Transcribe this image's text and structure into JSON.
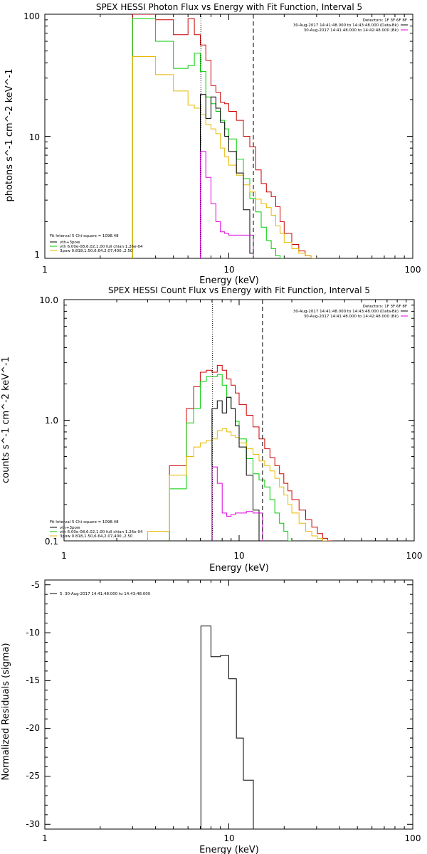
{
  "chart_data": [
    {
      "type": "line",
      "title": "SPEX HESSI Photon Flux vs Energy with Fit Function, Interval 5",
      "xlabel": "Energy (keV)",
      "ylabel": "photons s^-1 cm^-2 keV^-1",
      "xscale": "log",
      "yscale": "log",
      "xlim": [
        1,
        100
      ],
      "ylim": [
        1,
        100
      ],
      "xtick_labels": [
        "1",
        "10",
        "100"
      ],
      "ytick_labels": [
        "1",
        "10",
        "100"
      ],
      "fit_labels": [
        "Fit Interval 5   Chi-square = 1098.48",
        "vth+3pow",
        "vth 6.00e-08,6.02,1.00  full chian 1.26e-04",
        "3pow 0.818,1.50,6.64,2.07,400.,2.50"
      ],
      "detector_info": [
        "Detectors: 1F 3F 6F 8F",
        "30-Aug-2017 14:41:48.000 to 14:43:48.000 (Data-Bk)",
        "30-Aug-2017 14:41:48.000 to 14:42:48.000 (Bk)"
      ],
      "vlines": {
        "dotted": 7.05,
        "dashed": 13.6
      },
      "series": [
        {
          "color": "#cc0000",
          "edges": [
            3,
            4,
            5,
            6,
            6.5,
            7,
            7.5,
            8,
            8.5,
            9,
            9.5,
            10,
            11,
            12,
            13,
            14,
            15,
            16,
            17,
            18,
            19,
            20,
            22,
            24,
            26,
            28,
            30
          ],
          "values": [
            100,
            90,
            68,
            92,
            68,
            56,
            42,
            26,
            23,
            19,
            18.5,
            16,
            13.5,
            10,
            8.2,
            5.3,
            4.1,
            3.5,
            3.2,
            2.65,
            2.0,
            1.6,
            1.3,
            1.15,
            1.05,
            1.0
          ]
        },
        {
          "color": "#00cc00",
          "edges": [
            3,
            4,
            5,
            6,
            6.5,
            7,
            7.5,
            8,
            8.5,
            9,
            9.5,
            10,
            11,
            12,
            13,
            14,
            15,
            16,
            17,
            18,
            19,
            20
          ],
          "values": [
            92,
            60,
            36,
            38,
            48,
            34,
            21,
            18.5,
            16,
            13.5,
            11.5,
            9.5,
            6.5,
            4.5,
            3.1,
            2.4,
            1.8,
            1.4,
            1.2,
            1.05,
            1.0
          ]
        },
        {
          "color": "#e6b800",
          "edges": [
            3,
            4,
            5,
            6,
            6.5,
            7,
            7.5,
            8,
            8.5,
            9,
            9.5,
            10,
            11,
            12,
            13,
            14,
            15,
            16,
            17,
            18,
            19,
            20,
            22,
            24,
            26,
            28,
            30
          ],
          "values": [
            45,
            32,
            23.5,
            18,
            17,
            15,
            12.5,
            11.5,
            10.5,
            8,
            6.8,
            5.8,
            4.8,
            4,
            3.5,
            3.05,
            2.8,
            2.6,
            2.25,
            1.85,
            1.6,
            1.35,
            1.2,
            1.1,
            1.05,
            1.0
          ]
        },
        {
          "color": "#000000",
          "edges": [
            7,
            7.5,
            8,
            8.5,
            9,
            9.5,
            10,
            11,
            12,
            13,
            13.6
          ],
          "values": [
            22,
            14,
            21,
            17,
            13,
            10,
            7.5,
            5,
            2.5,
            1.1
          ]
        },
        {
          "color": "#dd00dd",
          "edges": [
            7,
            7.5,
            8,
            8.5,
            9,
            9.5,
            10,
            11,
            12,
            13,
            13.6
          ],
          "values": [
            7.5,
            4.6,
            2.8,
            2.0,
            1.65,
            1.6,
            1.55,
            1.55,
            1.55,
            1.55
          ]
        }
      ]
    },
    {
      "type": "line",
      "title": "SPEX HESSI Count Flux vs Energy with Fit Function, Interval 5",
      "xlabel": "Energy (keV)",
      "ylabel": "counts s^-1 cm^-2 keV^-1",
      "xscale": "log",
      "yscale": "log",
      "xlim": [
        1,
        100
      ],
      "ylim": [
        0.1,
        10
      ],
      "xtick_labels": [
        "1",
        "10",
        "100"
      ],
      "ytick_labels": [
        "0.1",
        "1.0",
        "10.0"
      ],
      "fit_labels": [
        "Fit Interval 5   Chi-square = 1098.48",
        "vth+3pow",
        "vth 6.00e-08,6.02,1.00  full chian 1.26e-04",
        "3pow 0.818,1.50,6.64,2.07,400.,2.50"
      ],
      "detector_info": [
        "Detectors: 1F 3F 6F 8F",
        "30-Aug-2017 14:41:48.000 to 14:43:48.000 (Data-Bk)",
        "30-Aug-2017 14:41:48.000 to 14:42:48.000 (Bk)"
      ],
      "vlines": {
        "dotted": 7.05,
        "dashed": 13.6
      },
      "series": [
        {
          "color": "#cc0000",
          "edges": [
            4,
            5,
            5.5,
            6,
            6.5,
            7,
            7.5,
            8,
            8.5,
            9,
            9.5,
            10,
            11,
            12,
            13,
            14,
            15,
            16,
            17,
            18,
            19,
            20,
            22,
            24,
            26,
            28,
            30,
            32,
            34
          ],
          "values": [
            0.42,
            1.25,
            1.9,
            2.5,
            2.6,
            2.5,
            2.85,
            2.6,
            2.2,
            1.95,
            1.68,
            1.35,
            1.1,
            0.88,
            0.7,
            0.58,
            0.49,
            0.42,
            0.36,
            0.3,
            0.26,
            0.22,
            0.18,
            0.15,
            0.13,
            0.115,
            0.105,
            0.1
          ]
        },
        {
          "color": "#00cc00",
          "edges": [
            4,
            5,
            5.5,
            6,
            6.5,
            7,
            7.5,
            8,
            8.5,
            9,
            9.5,
            10,
            11,
            12,
            13,
            14,
            15,
            16,
            17,
            18,
            19,
            20
          ],
          "values": [
            0.27,
            0.95,
            1.25,
            2.1,
            2.3,
            2.3,
            2.4,
            1.95,
            1.55,
            1.25,
            0.98,
            0.7,
            0.48,
            0.36,
            0.32,
            0.28,
            0.22,
            0.17,
            0.14,
            0.12,
            0.1
          ]
        },
        {
          "color": "#e6b800",
          "edges": [
            3,
            4,
            5,
            5.5,
            6,
            6.5,
            7,
            7.5,
            8,
            8.5,
            9,
            9.5,
            10,
            11,
            12,
            13,
            14,
            15,
            16,
            17,
            18,
            19,
            20,
            22,
            24,
            26,
            28,
            30,
            32
          ],
          "values": [
            0.12,
            0.35,
            0.5,
            0.6,
            0.65,
            0.68,
            0.7,
            0.82,
            0.85,
            0.8,
            0.75,
            0.72,
            0.65,
            0.58,
            0.52,
            0.46,
            0.42,
            0.38,
            0.33,
            0.28,
            0.24,
            0.2,
            0.17,
            0.14,
            0.12,
            0.11,
            0.105,
            0.1
          ]
        },
        {
          "color": "#000000",
          "edges": [
            7,
            7.5,
            8,
            8.5,
            9,
            9.5,
            10,
            11,
            12,
            13,
            13.6
          ],
          "values": [
            1.25,
            1.45,
            1.15,
            1.55,
            1.25,
            0.9,
            0.6,
            0.35,
            0.18,
            0.1
          ]
        },
        {
          "color": "#dd00dd",
          "edges": [
            7,
            7.5,
            8,
            8.5,
            9,
            9.5,
            10,
            11,
            12,
            13,
            13.6
          ],
          "values": [
            0.41,
            0.3,
            0.17,
            0.16,
            0.165,
            0.17,
            0.17,
            0.175,
            0.17,
            0.17
          ]
        }
      ]
    },
    {
      "type": "line",
      "title": "",
      "xlabel": "Energy (keV)",
      "ylabel": "Normalized Residuals (sigma)",
      "xscale": "log",
      "yscale": "linear",
      "xlim": [
        1,
        100
      ],
      "ylim": [
        -30.5,
        -4.5
      ],
      "xtick_labels": [
        "1",
        "10",
        "100"
      ],
      "ytick_labels": [
        "-5",
        "-10",
        "-15",
        "-20",
        "-25",
        "-30"
      ],
      "legend": "5. 30-Aug-2017 14:41:48.000 to 14:43:48.000",
      "series": [
        {
          "color": "#000000",
          "edges": [
            7.05,
            8,
            9,
            10,
            11,
            12,
            13.6
          ],
          "values": [
            -9.3,
            -12.5,
            -12.4,
            -14.8,
            -21.0,
            -25.4
          ]
        }
      ]
    }
  ]
}
